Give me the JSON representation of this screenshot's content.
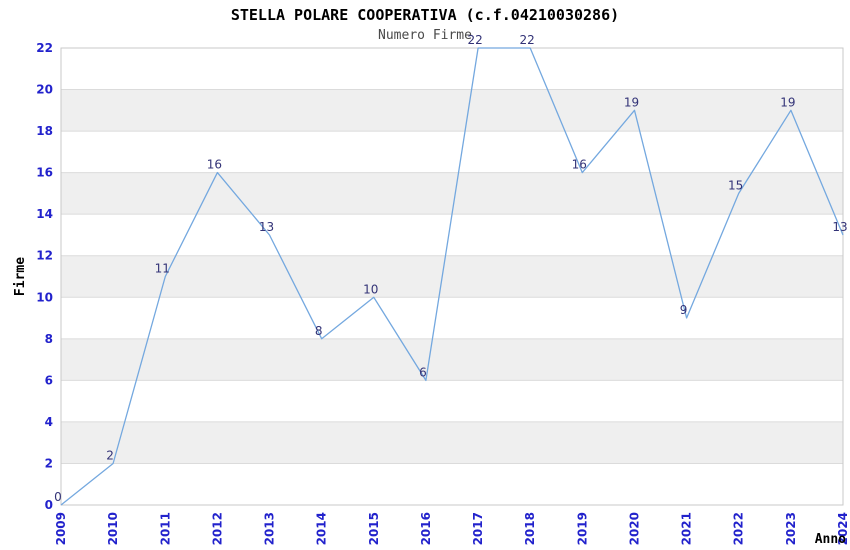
{
  "chart_data": {
    "type": "line",
    "title": "STELLA POLARE COOPERATIVA (c.f.04210030286)",
    "subtitle": "Numero Firme",
    "xlabel": "Anno",
    "ylabel": "Firme",
    "categories": [
      "2009",
      "2010",
      "2011",
      "2012",
      "2013",
      "2014",
      "2015",
      "2016",
      "2017",
      "2018",
      "2019",
      "2020",
      "2021",
      "2022",
      "2023",
      "2024"
    ],
    "values": [
      0,
      2,
      11,
      16,
      13,
      8,
      10,
      6,
      22,
      22,
      16,
      19,
      9,
      15,
      19,
      13
    ],
    "ylim": [
      0,
      22
    ],
    "ytick_step": 2,
    "grid": "horizontal-bands-alternating",
    "legend": "none",
    "data_labels": "shown-above-points",
    "colors": {
      "line": "#74A8DF",
      "tick_label": "#2222CC",
      "value_label": "#333377",
      "band_fill": "#EFEFEF",
      "grid_line": "#DBDBDB",
      "plot_border": "#C9C9C9",
      "title": "#000000",
      "subtitle": "#4a4a4a",
      "axis_label": "#000000",
      "background": "#FFFFFF"
    }
  }
}
